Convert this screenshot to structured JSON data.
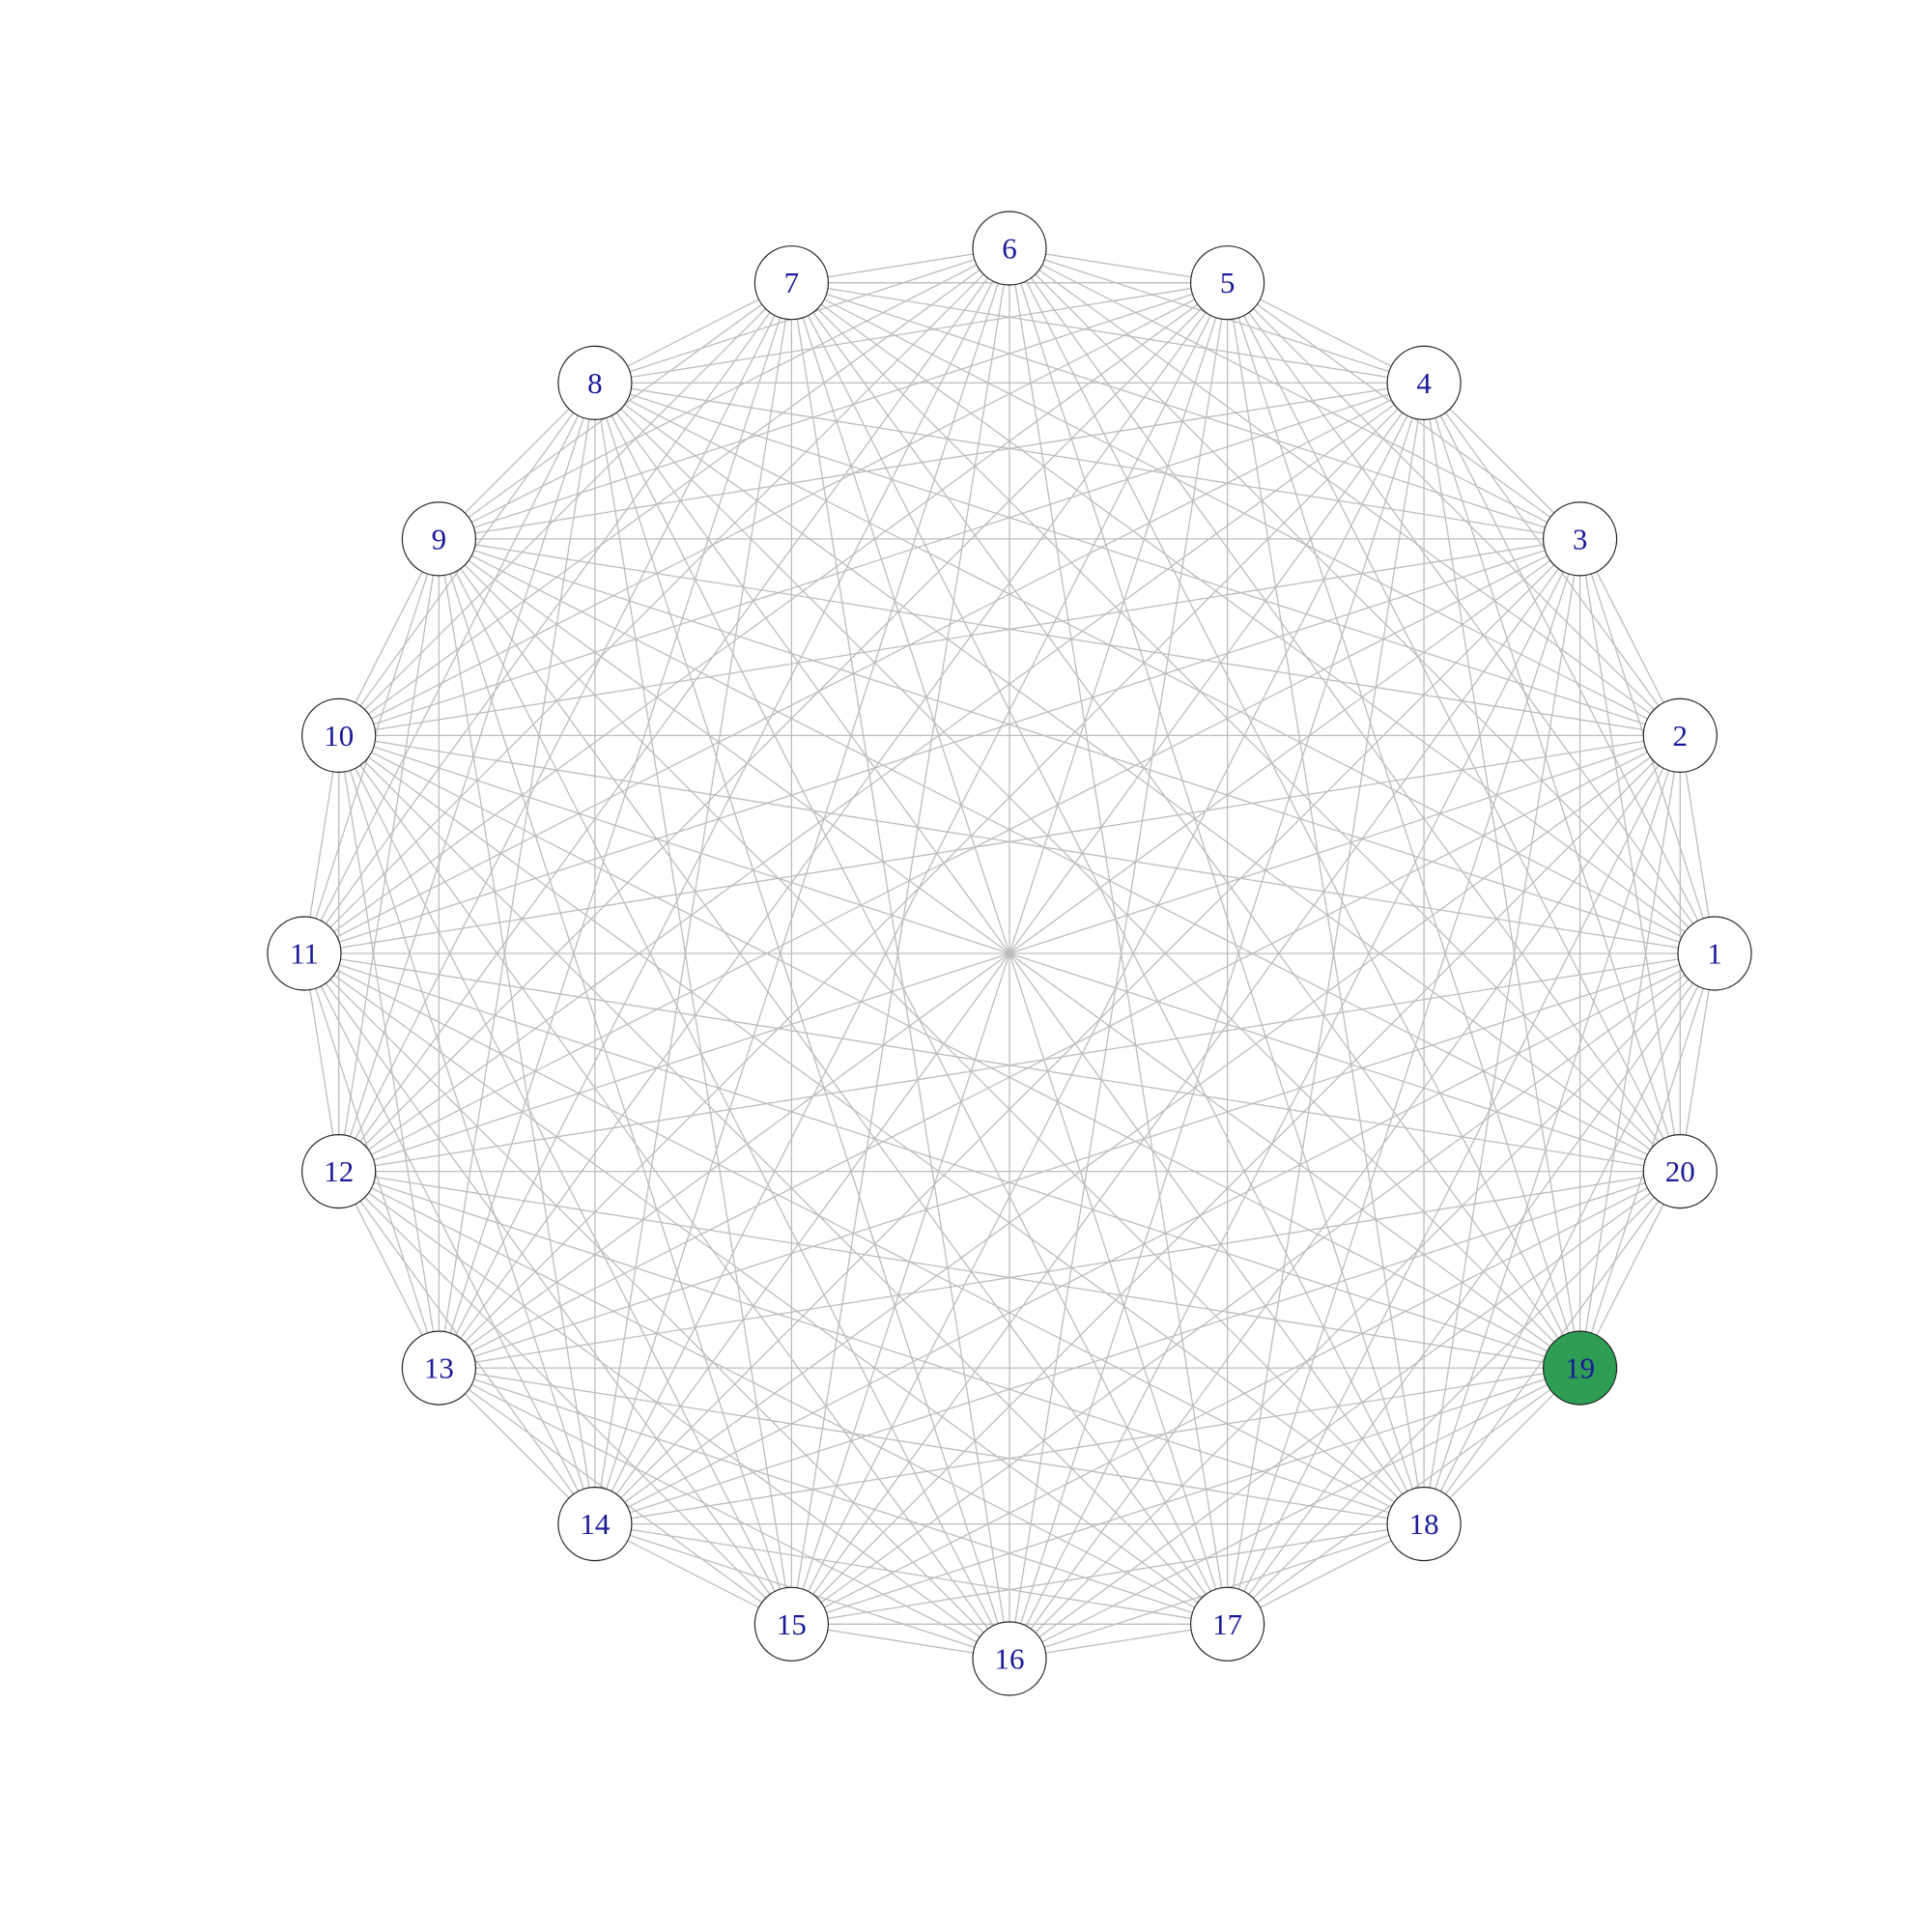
{
  "graph": {
    "type": "complete-graph",
    "layout": "circle",
    "node_count": 20,
    "nodes": [
      {
        "label": "1"
      },
      {
        "label": "2"
      },
      {
        "label": "3"
      },
      {
        "label": "4"
      },
      {
        "label": "5"
      },
      {
        "label": "6"
      },
      {
        "label": "7"
      },
      {
        "label": "8"
      },
      {
        "label": "9"
      },
      {
        "label": "10"
      },
      {
        "label": "11"
      },
      {
        "label": "12"
      },
      {
        "label": "13"
      },
      {
        "label": "14"
      },
      {
        "label": "15"
      },
      {
        "label": "16"
      },
      {
        "label": "17"
      },
      {
        "label": "18"
      },
      {
        "label": "19"
      },
      {
        "label": "20"
      }
    ],
    "highlighted_node": "19",
    "colors": {
      "edge": "#bdbdbd",
      "node_fill": "#ffffff",
      "highlight_fill": "#2e9e55",
      "node_border": "#222222",
      "label": "#1a1a99"
    }
  }
}
